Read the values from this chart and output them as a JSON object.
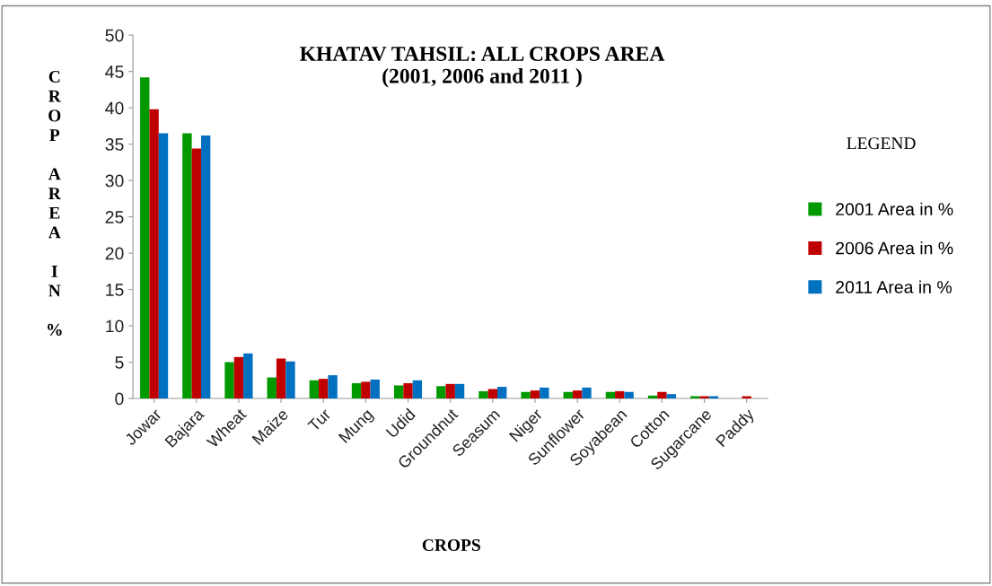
{
  "chart_data": {
    "type": "bar",
    "title": "KHATAV TAHSIL: ALL CROPS AREA\n(2001, 2006 and 2011 )",
    "xlabel": "CROPS",
    "ylabel": "CROP AREA IN %",
    "legend_title": "LEGEND",
    "categories": [
      "Jowar",
      "Bajara",
      "Wheat",
      "Maize",
      "Tur",
      "Mung",
      "Udid",
      "Groundnut",
      "Seasum",
      "Niger",
      "Sunflower",
      "Soyabean",
      "Cotton",
      "Sugarcane",
      "Paddy"
    ],
    "series": [
      {
        "name": "2001 Area in %",
        "color": "#009900",
        "values": [
          44.2,
          36.5,
          5.0,
          2.9,
          2.5,
          2.1,
          1.8,
          1.7,
          1.0,
          0.9,
          0.9,
          0.9,
          0.4,
          0.3,
          0
        ]
      },
      {
        "name": "2006 Area in %",
        "color": "#c00000",
        "values": [
          39.8,
          34.4,
          5.7,
          5.5,
          2.7,
          2.3,
          2.1,
          2.0,
          1.3,
          1.1,
          1.1,
          1.0,
          0.9,
          0.3,
          0.3
        ]
      },
      {
        "name": "2011 Area in %",
        "color": "#0070c0",
        "values": [
          36.5,
          36.2,
          6.2,
          5.1,
          3.2,
          2.6,
          2.5,
          2.0,
          1.6,
          1.5,
          1.5,
          0.9,
          0.6,
          0.3,
          null
        ]
      }
    ],
    "ylim": [
      0,
      50
    ],
    "yticks": [
      0,
      5,
      10,
      15,
      20,
      25,
      30,
      35,
      40,
      45,
      50
    ],
    "grid": false,
    "legend": "right"
  }
}
